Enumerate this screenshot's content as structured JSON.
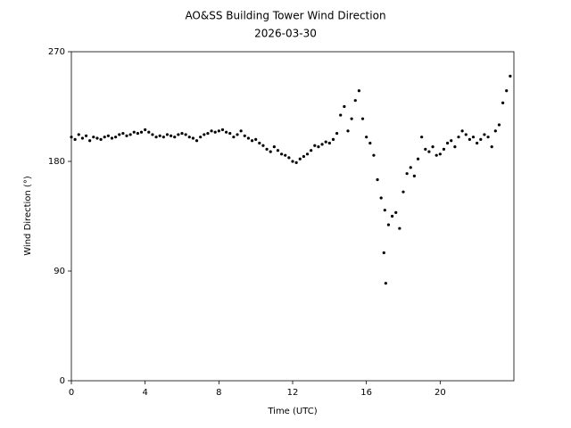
{
  "chart_data": {
    "type": "scatter",
    "title": "AO&SS Building Tower Wind Direction",
    "subtitle": "2026-03-30",
    "x_label": "Time (UTC)",
    "y_label": "Wind Direction (°)",
    "color": "#000000",
    "xlim": [
      0,
      24
    ],
    "xticks": [
      0,
      4,
      8,
      12,
      16,
      20
    ],
    "ylim": [
      0,
      270
    ],
    "yticks": [
      0,
      90,
      180,
      270
    ],
    "x": [
      0,
      0.2,
      0.4,
      0.6,
      0.8,
      1,
      1.2,
      1.4,
      1.6,
      1.8,
      2,
      2.2,
      2.4,
      2.6,
      2.8,
      3,
      3.2,
      3.4,
      3.6,
      3.8,
      4,
      4.2,
      4.4,
      4.6,
      4.8,
      5,
      5.2,
      5.4,
      5.6,
      5.8,
      6,
      6.2,
      6.4,
      6.6,
      6.8,
      7,
      7.2,
      7.4,
      7.6,
      7.8,
      8,
      8.2,
      8.4,
      8.6,
      8.8,
      9,
      9.2,
      9.4,
      9.6,
      9.8,
      10,
      10.2,
      10.4,
      10.6,
      10.8,
      11,
      11.2,
      11.4,
      11.6,
      11.8,
      12,
      12.2,
      12.4,
      12.6,
      12.8,
      13,
      13.2,
      13.4,
      13.6,
      13.8,
      14,
      14.2,
      14.4,
      14.6,
      14.8,
      15,
      15.2,
      15.4,
      15.6,
      15.8,
      16,
      16.2,
      16.4,
      16.6,
      16.8,
      17,
      17.2,
      17.4,
      17.6,
      17.8,
      18,
      18.2,
      18.4,
      18.6,
      18.8,
      19,
      19.2,
      19.4,
      19.6,
      19.8,
      20,
      20.2,
      20.4,
      20.6,
      20.8,
      21,
      21.2,
      21.4,
      21.6,
      21.8,
      22,
      22.2,
      22.4,
      22.6,
      22.8,
      23,
      23.2,
      23.4,
      23.6,
      23.8,
      17.05,
      16.95
    ],
    "values": [
      200,
      198,
      202,
      199,
      201,
      197,
      200,
      199,
      198,
      200,
      201,
      199,
      200,
      202,
      203,
      201,
      202,
      204,
      203,
      204,
      206,
      204,
      202,
      200,
      201,
      200,
      202,
      201,
      200,
      202,
      203,
      202,
      200,
      199,
      197,
      200,
      202,
      203,
      205,
      204,
      205,
      206,
      204,
      203,
      200,
      202,
      205,
      201,
      199,
      197,
      198,
      195,
      193,
      190,
      188,
      192,
      189,
      186,
      185,
      183,
      180,
      179,
      182,
      184,
      186,
      189,
      193,
      192,
      194,
      196,
      195,
      198,
      203,
      218,
      225,
      205,
      215,
      230,
      238,
      215,
      200,
      195,
      185,
      165,
      150,
      140,
      128,
      135,
      138,
      125,
      155,
      170,
      175,
      168,
      182,
      200,
      190,
      188,
      192,
      185,
      186,
      190,
      195,
      197,
      192,
      200,
      205,
      202,
      198,
      200,
      195,
      198,
      202,
      200,
      192,
      205,
      210,
      228,
      238,
      250,
      80,
      105
    ]
  }
}
